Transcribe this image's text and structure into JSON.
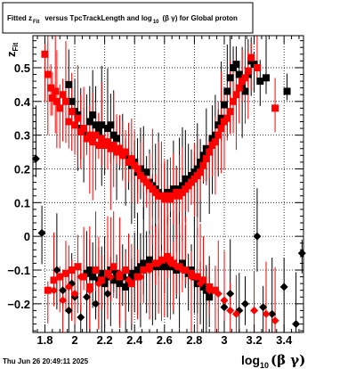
{
  "chart_data": {
    "type": "scatter",
    "title": "Fitted  z_Fit  versus TpcTrackLength and log_10 (β γ) for Global proton",
    "title_parts": {
      "prefix": "Fitted  z",
      "sub1": "Fit",
      "middle": "versus TpcTrackLength and log",
      "sub2": "10",
      "suffix": "(β  γ) for Global proton"
    },
    "xlabel": "log10(β γ)",
    "xlabel_parts": {
      "main": "log",
      "sub": "10",
      "rest": "(β γ)"
    },
    "ylabel": "z_Fit",
    "ylabel_parts": {
      "main": "z",
      "sub": "Fit"
    },
    "xlim": [
      1.72,
      3.53
    ],
    "ylim": [
      -0.285,
      0.595
    ],
    "x_ticks": [
      1.8,
      2.0,
      2.2,
      2.4,
      2.6,
      2.8,
      3.0,
      3.2,
      3.4
    ],
    "x_tick_labels": [
      "1.8",
      "2",
      "2.2",
      "2.4",
      "2.6",
      "2.8",
      "3",
      "3.2",
      "3.4"
    ],
    "y_ticks": [
      -0.2,
      -0.1,
      0.0,
      0.1,
      0.2,
      0.3,
      0.4,
      0.5
    ],
    "y_tick_labels": [
      "−0.2",
      "−0.1",
      "0",
      "0.1",
      "0.2",
      "0.3",
      "0.4",
      "0.5"
    ],
    "grid": true,
    "timestamp": "Thu Jun 26 20:49:11 2025",
    "series": [
      {
        "color": "#000000",
        "marker": "square",
        "points": [
          [
            1.96,
            0.45
          ],
          [
            1.98,
            0.4
          ],
          [
            2.0,
            0.37
          ],
          [
            2.02,
            0.36
          ],
          [
            2.04,
            0.32
          ],
          [
            2.06,
            0.31
          ],
          [
            2.08,
            0.29
          ],
          [
            2.1,
            0.34
          ],
          [
            2.12,
            0.36
          ],
          [
            2.14,
            0.33
          ],
          [
            2.16,
            0.31
          ],
          [
            2.18,
            0.33
          ],
          [
            2.2,
            0.28
          ],
          [
            2.22,
            0.32
          ],
          [
            2.24,
            0.33
          ],
          [
            2.26,
            0.3
          ],
          [
            2.28,
            0.29
          ],
          [
            2.3,
            0.26
          ],
          [
            2.32,
            0.25
          ],
          [
            2.34,
            0.24
          ],
          [
            2.36,
            0.22
          ],
          [
            2.38,
            0.21
          ],
          [
            2.4,
            0.22
          ],
          [
            2.42,
            0.19
          ],
          [
            2.44,
            0.2
          ],
          [
            2.46,
            0.18
          ],
          [
            2.48,
            0.19
          ],
          [
            2.5,
            0.16
          ],
          [
            2.52,
            0.15
          ],
          [
            2.54,
            0.14
          ],
          [
            2.56,
            0.13
          ],
          [
            2.58,
            0.12
          ],
          [
            2.6,
            0.12
          ],
          [
            2.62,
            0.13
          ],
          [
            2.64,
            0.12
          ],
          [
            2.66,
            0.14
          ],
          [
            2.68,
            0.14
          ],
          [
            2.7,
            0.13
          ],
          [
            2.72,
            0.15
          ],
          [
            2.74,
            0.17
          ],
          [
            2.76,
            0.16
          ],
          [
            2.78,
            0.18
          ],
          [
            2.8,
            0.19
          ],
          [
            2.82,
            0.2
          ],
          [
            2.84,
            0.22
          ],
          [
            2.86,
            0.24
          ],
          [
            2.88,
            0.26
          ],
          [
            2.9,
            0.25
          ],
          [
            2.92,
            0.29
          ],
          [
            2.94,
            0.3
          ],
          [
            2.96,
            0.33
          ],
          [
            2.98,
            0.35
          ],
          [
            3.0,
            0.39
          ],
          [
            3.02,
            0.43
          ],
          [
            3.04,
            0.47
          ],
          [
            3.06,
            0.5
          ],
          [
            3.08,
            0.51
          ],
          [
            3.1,
            0.48
          ],
          [
            3.12,
            0.45
          ],
          [
            3.14,
            0.43
          ],
          [
            3.16,
            0.48
          ],
          [
            3.18,
            0.52
          ],
          [
            3.2,
            0.51
          ],
          [
            3.24,
            0.46
          ],
          [
            3.28,
            0.47
          ],
          [
            3.42,
            0.43
          ],
          [
            2.08,
            -0.11
          ],
          [
            2.1,
            -0.1
          ],
          [
            2.12,
            -0.12
          ],
          [
            2.14,
            -0.1
          ],
          [
            2.16,
            -0.13
          ],
          [
            2.18,
            -0.11
          ],
          [
            2.2,
            -0.14
          ],
          [
            2.22,
            -0.12
          ],
          [
            2.24,
            -0.1
          ],
          [
            2.26,
            -0.13
          ],
          [
            2.28,
            -0.11
          ],
          [
            2.3,
            -0.14
          ],
          [
            2.32,
            -0.12
          ],
          [
            2.34,
            -0.15
          ],
          [
            2.36,
            -0.13
          ],
          [
            2.38,
            -0.11
          ],
          [
            2.4,
            -0.12
          ],
          [
            2.42,
            -0.1
          ],
          [
            2.44,
            -0.09
          ],
          [
            2.46,
            -0.08
          ],
          [
            2.48,
            -0.09
          ],
          [
            2.5,
            -0.07
          ],
          [
            2.52,
            -0.08
          ],
          [
            2.54,
            -0.09
          ],
          [
            2.56,
            -0.08
          ],
          [
            2.58,
            -0.09
          ],
          [
            2.6,
            -0.08
          ],
          [
            2.62,
            -0.09
          ],
          [
            2.64,
            -0.08
          ],
          [
            2.66,
            -0.09
          ],
          [
            2.68,
            -0.1
          ],
          [
            2.7,
            -0.09
          ],
          [
            2.72,
            -0.08
          ],
          [
            2.74,
            -0.1
          ],
          [
            2.76,
            -0.11
          ],
          [
            2.78,
            -0.1
          ],
          [
            2.8,
            -0.12
          ],
          [
            2.82,
            -0.14
          ],
          [
            2.84,
            -0.13
          ],
          [
            2.86,
            -0.15
          ],
          [
            2.88,
            -0.16
          ],
          [
            2.9,
            -0.18
          ]
        ]
      },
      {
        "color": "#000000",
        "marker": "diamond",
        "points": [
          [
            1.74,
            0.23
          ],
          [
            1.78,
            0.01
          ],
          [
            1.88,
            -0.1
          ],
          [
            1.92,
            -0.16
          ],
          [
            1.96,
            -0.22
          ],
          [
            1.98,
            -0.14
          ],
          [
            2.0,
            -0.18
          ],
          [
            2.04,
            -0.24
          ],
          [
            2.08,
            -0.18
          ],
          [
            2.14,
            -0.2
          ],
          [
            2.22,
            -0.17
          ],
          [
            2.9,
            -0.17
          ],
          [
            3.0,
            -0.21
          ],
          [
            3.04,
            -0.17
          ],
          [
            3.1,
            -0.22
          ],
          [
            3.14,
            -0.2
          ],
          [
            3.22,
            0.0
          ],
          [
            3.26,
            -0.21
          ],
          [
            3.32,
            -0.23
          ],
          [
            3.4,
            -0.15
          ],
          [
            3.48,
            -0.26
          ],
          [
            3.52,
            -0.05
          ]
        ]
      },
      {
        "color": "#ff0000",
        "marker": "square",
        "points": [
          [
            1.8,
            0.54
          ],
          [
            1.82,
            0.48
          ],
          [
            1.84,
            0.44
          ],
          [
            1.85,
            0.41
          ],
          [
            1.87,
            0.43
          ],
          [
            1.88,
            0.4
          ],
          [
            1.9,
            0.38
          ],
          [
            1.92,
            0.42
          ],
          [
            1.94,
            0.4
          ],
          [
            1.96,
            0.34
          ],
          [
            1.98,
            0.37
          ],
          [
            2.0,
            0.33
          ],
          [
            2.02,
            0.35
          ],
          [
            2.04,
            0.31
          ],
          [
            2.06,
            0.32
          ],
          [
            2.08,
            0.29
          ],
          [
            2.1,
            0.3
          ],
          [
            2.12,
            0.28
          ],
          [
            2.14,
            0.3
          ],
          [
            2.16,
            0.27
          ],
          [
            2.18,
            0.29
          ],
          [
            2.2,
            0.27
          ],
          [
            2.22,
            0.28
          ],
          [
            2.24,
            0.26
          ],
          [
            2.26,
            0.27
          ],
          [
            2.28,
            0.25
          ],
          [
            2.3,
            0.26
          ],
          [
            2.32,
            0.24
          ],
          [
            2.34,
            0.25
          ],
          [
            2.36,
            0.22
          ],
          [
            2.38,
            0.23
          ],
          [
            2.4,
            0.21
          ],
          [
            2.42,
            0.2
          ],
          [
            2.44,
            0.18
          ],
          [
            2.46,
            0.17
          ],
          [
            2.48,
            0.16
          ],
          [
            2.5,
            0.15
          ],
          [
            2.52,
            0.14
          ],
          [
            2.54,
            0.13
          ],
          [
            2.56,
            0.12
          ],
          [
            2.58,
            0.12
          ],
          [
            2.6,
            0.11
          ],
          [
            2.62,
            0.12
          ],
          [
            2.64,
            0.11
          ],
          [
            2.66,
            0.12
          ],
          [
            2.68,
            0.13
          ],
          [
            2.7,
            0.12
          ],
          [
            2.72,
            0.13
          ],
          [
            2.74,
            0.14
          ],
          [
            2.76,
            0.15
          ],
          [
            2.78,
            0.16
          ],
          [
            2.8,
            0.17
          ],
          [
            2.82,
            0.18
          ],
          [
            2.84,
            0.19
          ],
          [
            2.86,
            0.21
          ],
          [
            2.88,
            0.23
          ],
          [
            2.9,
            0.25
          ],
          [
            2.92,
            0.27
          ],
          [
            2.94,
            0.28
          ],
          [
            2.96,
            0.3
          ],
          [
            2.98,
            0.32
          ],
          [
            3.0,
            0.34
          ],
          [
            3.02,
            0.35
          ],
          [
            3.04,
            0.37
          ],
          [
            3.06,
            0.4
          ],
          [
            3.08,
            0.42
          ],
          [
            3.1,
            0.44
          ],
          [
            3.12,
            0.46
          ],
          [
            3.14,
            0.47
          ],
          [
            3.16,
            0.49
          ],
          [
            3.18,
            0.53
          ],
          [
            3.22,
            0.5
          ],
          [
            3.34,
            0.38
          ],
          [
            1.82,
            -0.16
          ],
          [
            1.86,
            -0.13
          ],
          [
            1.9,
            -0.12
          ],
          [
            1.94,
            -0.11
          ],
          [
            1.98,
            -0.1
          ],
          [
            2.02,
            -0.09
          ],
          [
            2.06,
            -0.12
          ],
          [
            2.1,
            -0.15
          ],
          [
            2.14,
            -0.1
          ],
          [
            2.18,
            -0.13
          ],
          [
            2.22,
            -0.11
          ],
          [
            2.26,
            -0.09
          ],
          [
            2.3,
            -0.12
          ],
          [
            2.34,
            -0.1
          ],
          [
            2.38,
            -0.14
          ],
          [
            2.42,
            -0.12
          ],
          [
            2.46,
            -0.1
          ],
          [
            2.5,
            -0.09
          ],
          [
            2.54,
            -0.08
          ],
          [
            2.58,
            -0.07
          ],
          [
            2.62,
            -0.06
          ],
          [
            2.64,
            -0.07
          ],
          [
            2.66,
            -0.08
          ],
          [
            2.7,
            -0.09
          ],
          [
            2.74,
            -0.1
          ],
          [
            2.78,
            -0.11
          ],
          [
            2.82,
            -0.12
          ],
          [
            2.86,
            -0.13
          ],
          [
            2.9,
            -0.15
          ],
          [
            2.94,
            -0.16
          ]
        ]
      },
      {
        "color": "#ff0000",
        "marker": "diamond",
        "points": [
          [
            1.86,
            -0.16
          ],
          [
            1.92,
            -0.19
          ],
          [
            1.96,
            -0.15
          ],
          [
            2.0,
            -0.17
          ],
          [
            2.04,
            -0.12
          ],
          [
            2.1,
            -0.16
          ],
          [
            2.16,
            -0.14
          ],
          [
            2.24,
            -0.12
          ],
          [
            2.3,
            -0.11
          ],
          [
            2.36,
            -0.13
          ],
          [
            2.44,
            -0.12
          ],
          [
            2.5,
            -0.1
          ],
          [
            2.56,
            -0.08
          ],
          [
            2.6,
            -0.07
          ],
          [
            2.62,
            -0.06
          ],
          [
            2.64,
            -0.08
          ],
          [
            2.68,
            -0.09
          ],
          [
            2.72,
            -0.1
          ],
          [
            2.78,
            -0.12
          ],
          [
            2.84,
            -0.14
          ],
          [
            2.9,
            -0.16
          ],
          [
            2.96,
            -0.17
          ],
          [
            3.0,
            -0.19
          ],
          [
            3.04,
            -0.22
          ],
          [
            3.08,
            -0.23
          ],
          [
            3.2,
            -0.22
          ],
          [
            3.28,
            -0.23
          ],
          [
            3.34,
            -0.25
          ]
        ]
      }
    ]
  }
}
